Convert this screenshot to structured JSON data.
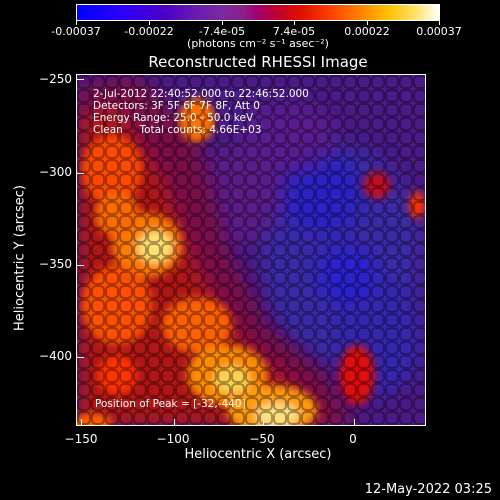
{
  "colorbar": {
    "ticks": [
      "-0.00037",
      "-0.00022",
      "-7.4e-05",
      "7.4e-05",
      "0.00022",
      "0.00037"
    ],
    "unit": "(photons cm⁻² s⁻¹ asec⁻²)"
  },
  "title": "Reconstructed RHESSI Image",
  "info": {
    "time": "2-Jul-2012 22:40:52.000 to 22:46:52.000",
    "detectors": "Detectors: 3F 5F 6F 7F 8F, Att 0",
    "energy": "Energy Range: 25.0 - 50.0 keV",
    "clean": "Clean     Total counts: 4.66E+03",
    "peak": "Position of Peak = [-32,-440]"
  },
  "axes": {
    "xlabel": "Heliocentric X (arcsec)",
    "ylabel": "Heliocentric Y (arcsec)",
    "xticks": [
      "−150",
      "−100",
      "−50",
      "0"
    ],
    "yticks": [
      "−250",
      "−300",
      "−350",
      "−400"
    ]
  },
  "timestamp": "12-May-2022 03:25"
}
